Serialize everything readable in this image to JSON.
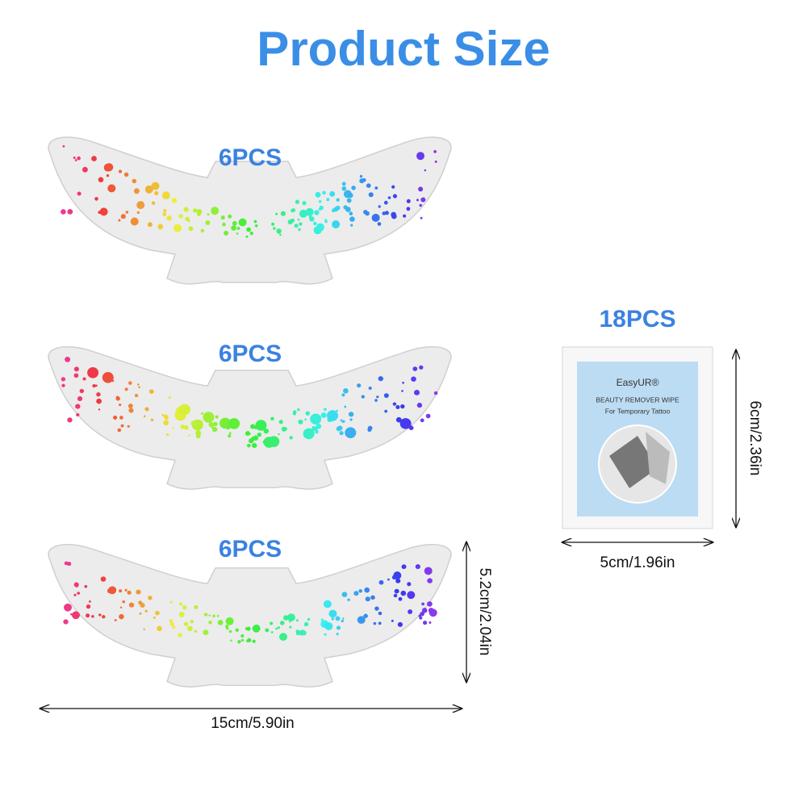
{
  "header": {
    "title": "Product Size"
  },
  "stickers": [
    {
      "count": "6PCS"
    },
    {
      "count": "6PCS"
    },
    {
      "count": "6PCS"
    }
  ],
  "sticker_dimensions": {
    "height": "5.2cm/2.04in",
    "width": "15cm/5.90in"
  },
  "wipe": {
    "count": "18PCS",
    "brand": "EasyUR®",
    "name": "BEAUTY REMOVER WIPE",
    "subtitle": "For Temporary Tattoo",
    "width": "5cm/1.96in",
    "height": "6cm/2.36in"
  }
}
